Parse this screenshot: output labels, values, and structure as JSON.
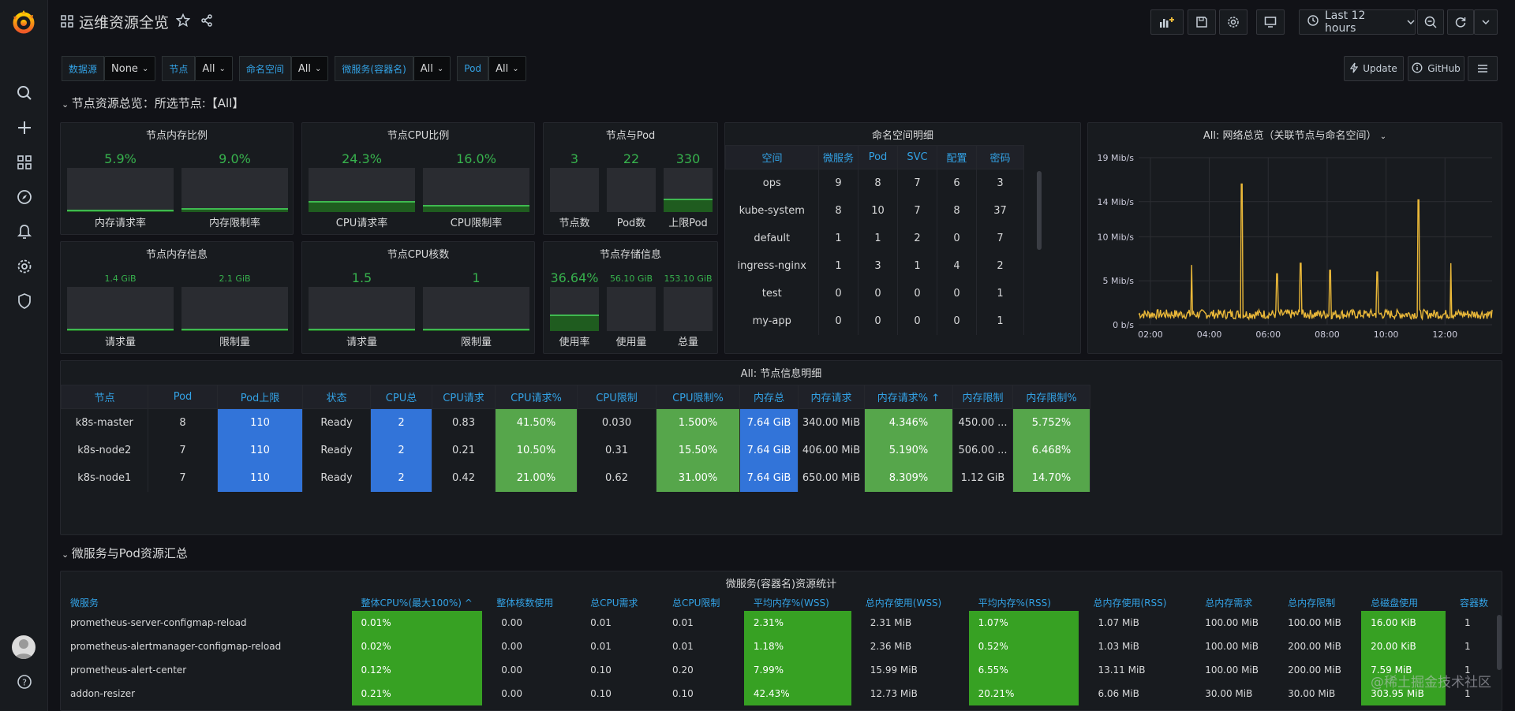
{
  "dashboard_title": "运维资源全览",
  "time_range": "Last 12 hours",
  "toolbar": {
    "update_label": "Update",
    "github_label": "GitHub"
  },
  "variables": [
    {
      "label": "数据源",
      "value": "None"
    },
    {
      "label": "节点",
      "value": "All"
    },
    {
      "label": "命名空间",
      "value": "All"
    },
    {
      "label": "微服务(容器名)",
      "value": "All"
    },
    {
      "label": "Pod",
      "value": "All"
    }
  ],
  "rows": {
    "node_overview": "节点资源总览：所选节点:【All】",
    "microservice": "微服务与Pod资源汇总"
  },
  "panels": {
    "mem_ratio": {
      "title": "节点内存比例",
      "items": [
        {
          "value": "5.9%",
          "label": "内存请求率",
          "fill": 0.059
        },
        {
          "value": "9.0%",
          "label": "内存限制率",
          "fill": 0.09
        }
      ]
    },
    "cpu_ratio": {
      "title": "节点CPU比例",
      "items": [
        {
          "value": "24.3%",
          "label": "CPU请求率",
          "fill": 0.243
        },
        {
          "value": "16.0%",
          "label": "CPU限制率",
          "fill": 0.16
        }
      ]
    },
    "node_pod": {
      "title": "节点与Pod",
      "items": [
        {
          "value": "3",
          "label": "节点数",
          "fill": 0.0
        },
        {
          "value": "22",
          "label": "Pod数",
          "fill": 0.0
        },
        {
          "value": "330",
          "label": "上限Pod",
          "fill": 0.3
        }
      ]
    },
    "mem_info": {
      "title": "节点内存信息",
      "items": [
        {
          "value": "1.4 GiB",
          "label": "请求量",
          "fill": 0.02
        },
        {
          "value": "2.1 GiB",
          "label": "限制量",
          "fill": 0.02
        }
      ]
    },
    "cpu_cores": {
      "title": "节点CPU核数",
      "items": [
        {
          "value": "1.5",
          "label": "请求量",
          "fill": 0.02
        },
        {
          "value": "1",
          "label": "限制量",
          "fill": 0.02
        }
      ]
    },
    "storage": {
      "title": "节点存储信息",
      "items": [
        {
          "value": "36.64%",
          "label": "使用率",
          "fill": 0.3664
        },
        {
          "value": "56.10 GiB",
          "label": "使用量",
          "fill": 0.0
        },
        {
          "value": "153.10 GiB",
          "label": "总量",
          "fill": 0.0
        }
      ]
    }
  },
  "namespace_table": {
    "title": "命名空间明细",
    "headers": [
      "空间",
      "微服务",
      "Pod",
      "SVC",
      "配置",
      "密码"
    ],
    "rows": [
      [
        "ops",
        "9",
        "8",
        "7",
        "6",
        "3"
      ],
      [
        "kube-system",
        "8",
        "10",
        "7",
        "8",
        "37"
      ],
      [
        "default",
        "1",
        "1",
        "2",
        "0",
        "7"
      ],
      [
        "ingress-nginx",
        "1",
        "3",
        "1",
        "4",
        "2"
      ],
      [
        "test",
        "0",
        "0",
        "0",
        "0",
        "1"
      ],
      [
        "my-app",
        "0",
        "0",
        "0",
        "0",
        "1"
      ]
    ]
  },
  "network_chart": {
    "title": "All:  网络总览（关联节点与命名空间）",
    "chart_data": {
      "type": "line",
      "y_ticks": [
        "19 Mib/s",
        "14 Mib/s",
        "10 Mib/s",
        "5 Mib/s",
        "0 b/s"
      ],
      "x_ticks": [
        "02:00",
        "04:00",
        "06:00",
        "08:00",
        "10:00",
        "12:00"
      ],
      "ylim": [
        0,
        19
      ],
      "spikes": [
        {
          "t": 3.4,
          "v": 6.8
        },
        {
          "t": 5.1,
          "v": 16.0
        },
        {
          "t": 6.3,
          "v": 5.8
        },
        {
          "t": 7.1,
          "v": 7.0
        },
        {
          "t": 8.1,
          "v": 6.2
        },
        {
          "t": 9.7,
          "v": 6.0
        },
        {
          "t": 11.1,
          "v": 14.2
        },
        {
          "t": 12.2,
          "v": 7.0
        }
      ],
      "baseline": 1.2,
      "t_start": 1.6,
      "t_end": 13.6,
      "color": "#eab839"
    }
  },
  "node_table": {
    "title": "All:  节点信息明细",
    "headers": [
      "节点",
      "Pod",
      "Pod上限",
      "状态",
      "CPU总",
      "CPU请求",
      "CPU请求%",
      "CPU限制",
      "CPU限制%",
      "内存总",
      "内存请求",
      "内存请求%",
      "内存限制",
      "内存限制%"
    ],
    "rows": [
      [
        "k8s-master",
        "8",
        "110",
        "Ready",
        "2",
        "0.83",
        "41.50%",
        "0.030",
        "1.500%",
        "7.64 GiB",
        "340.00 MiB",
        "4.346%",
        "450.00 ...",
        "5.752%"
      ],
      [
        "k8s-node2",
        "7",
        "110",
        "Ready",
        "2",
        "0.21",
        "10.50%",
        "0.31",
        "15.50%",
        "7.64 GiB",
        "406.00 MiB",
        "5.190%",
        "506.00 ...",
        "6.468%"
      ],
      [
        "k8s-node1",
        "7",
        "110",
        "Ready",
        "2",
        "0.42",
        "21.00%",
        "0.62",
        "31.00%",
        "7.64 GiB",
        "650.00 MiB",
        "8.309%",
        "1.12 GiB",
        "14.70%"
      ]
    ]
  },
  "ms_table": {
    "title": "微服务(容器名)资源统计",
    "headers": [
      "微服务",
      "整体CPU%(最大100%)",
      "整体核数使用",
      "总CPU需求",
      "总CPU限制",
      "平均内存%(WSS)",
      "总内存使用(WSS)",
      "平均内存%(RSS)",
      "总内存使用(RSS)",
      "总内存需求",
      "总内存限制",
      "总磁盘使用",
      "容器数"
    ],
    "rows": [
      [
        "prometheus-server-configmap-reload",
        "0.01%",
        "0.00",
        "0.01",
        "0.01",
        "2.31%",
        "2.31 MiB",
        "1.07%",
        "1.07 MiB",
        "100.00 MiB",
        "100.00 MiB",
        "16.00 KiB",
        "1"
      ],
      [
        "prometheus-alertmanager-configmap-reload",
        "0.02%",
        "0.00",
        "0.01",
        "0.01",
        "1.18%",
        "2.36 MiB",
        "0.52%",
        "1.03 MiB",
        "100.00 MiB",
        "200.00 MiB",
        "20.00 KiB",
        "1"
      ],
      [
        "prometheus-alert-center",
        "0.12%",
        "0.00",
        "0.10",
        "0.20",
        "7.99%",
        "15.99 MiB",
        "6.55%",
        "13.11 MiB",
        "100.00 MiB",
        "200.00 MiB",
        "7.59 MiB",
        "1"
      ],
      [
        "addon-resizer",
        "0.21%",
        "0.00",
        "0.10",
        "0.10",
        "42.43%",
        "12.73 MiB",
        "20.21%",
        "6.06 MiB",
        "30.00 MiB",
        "30.00 MiB",
        "303.95 MiB",
        "1"
      ]
    ]
  },
  "watermark": "@稀土掘金技术社区"
}
